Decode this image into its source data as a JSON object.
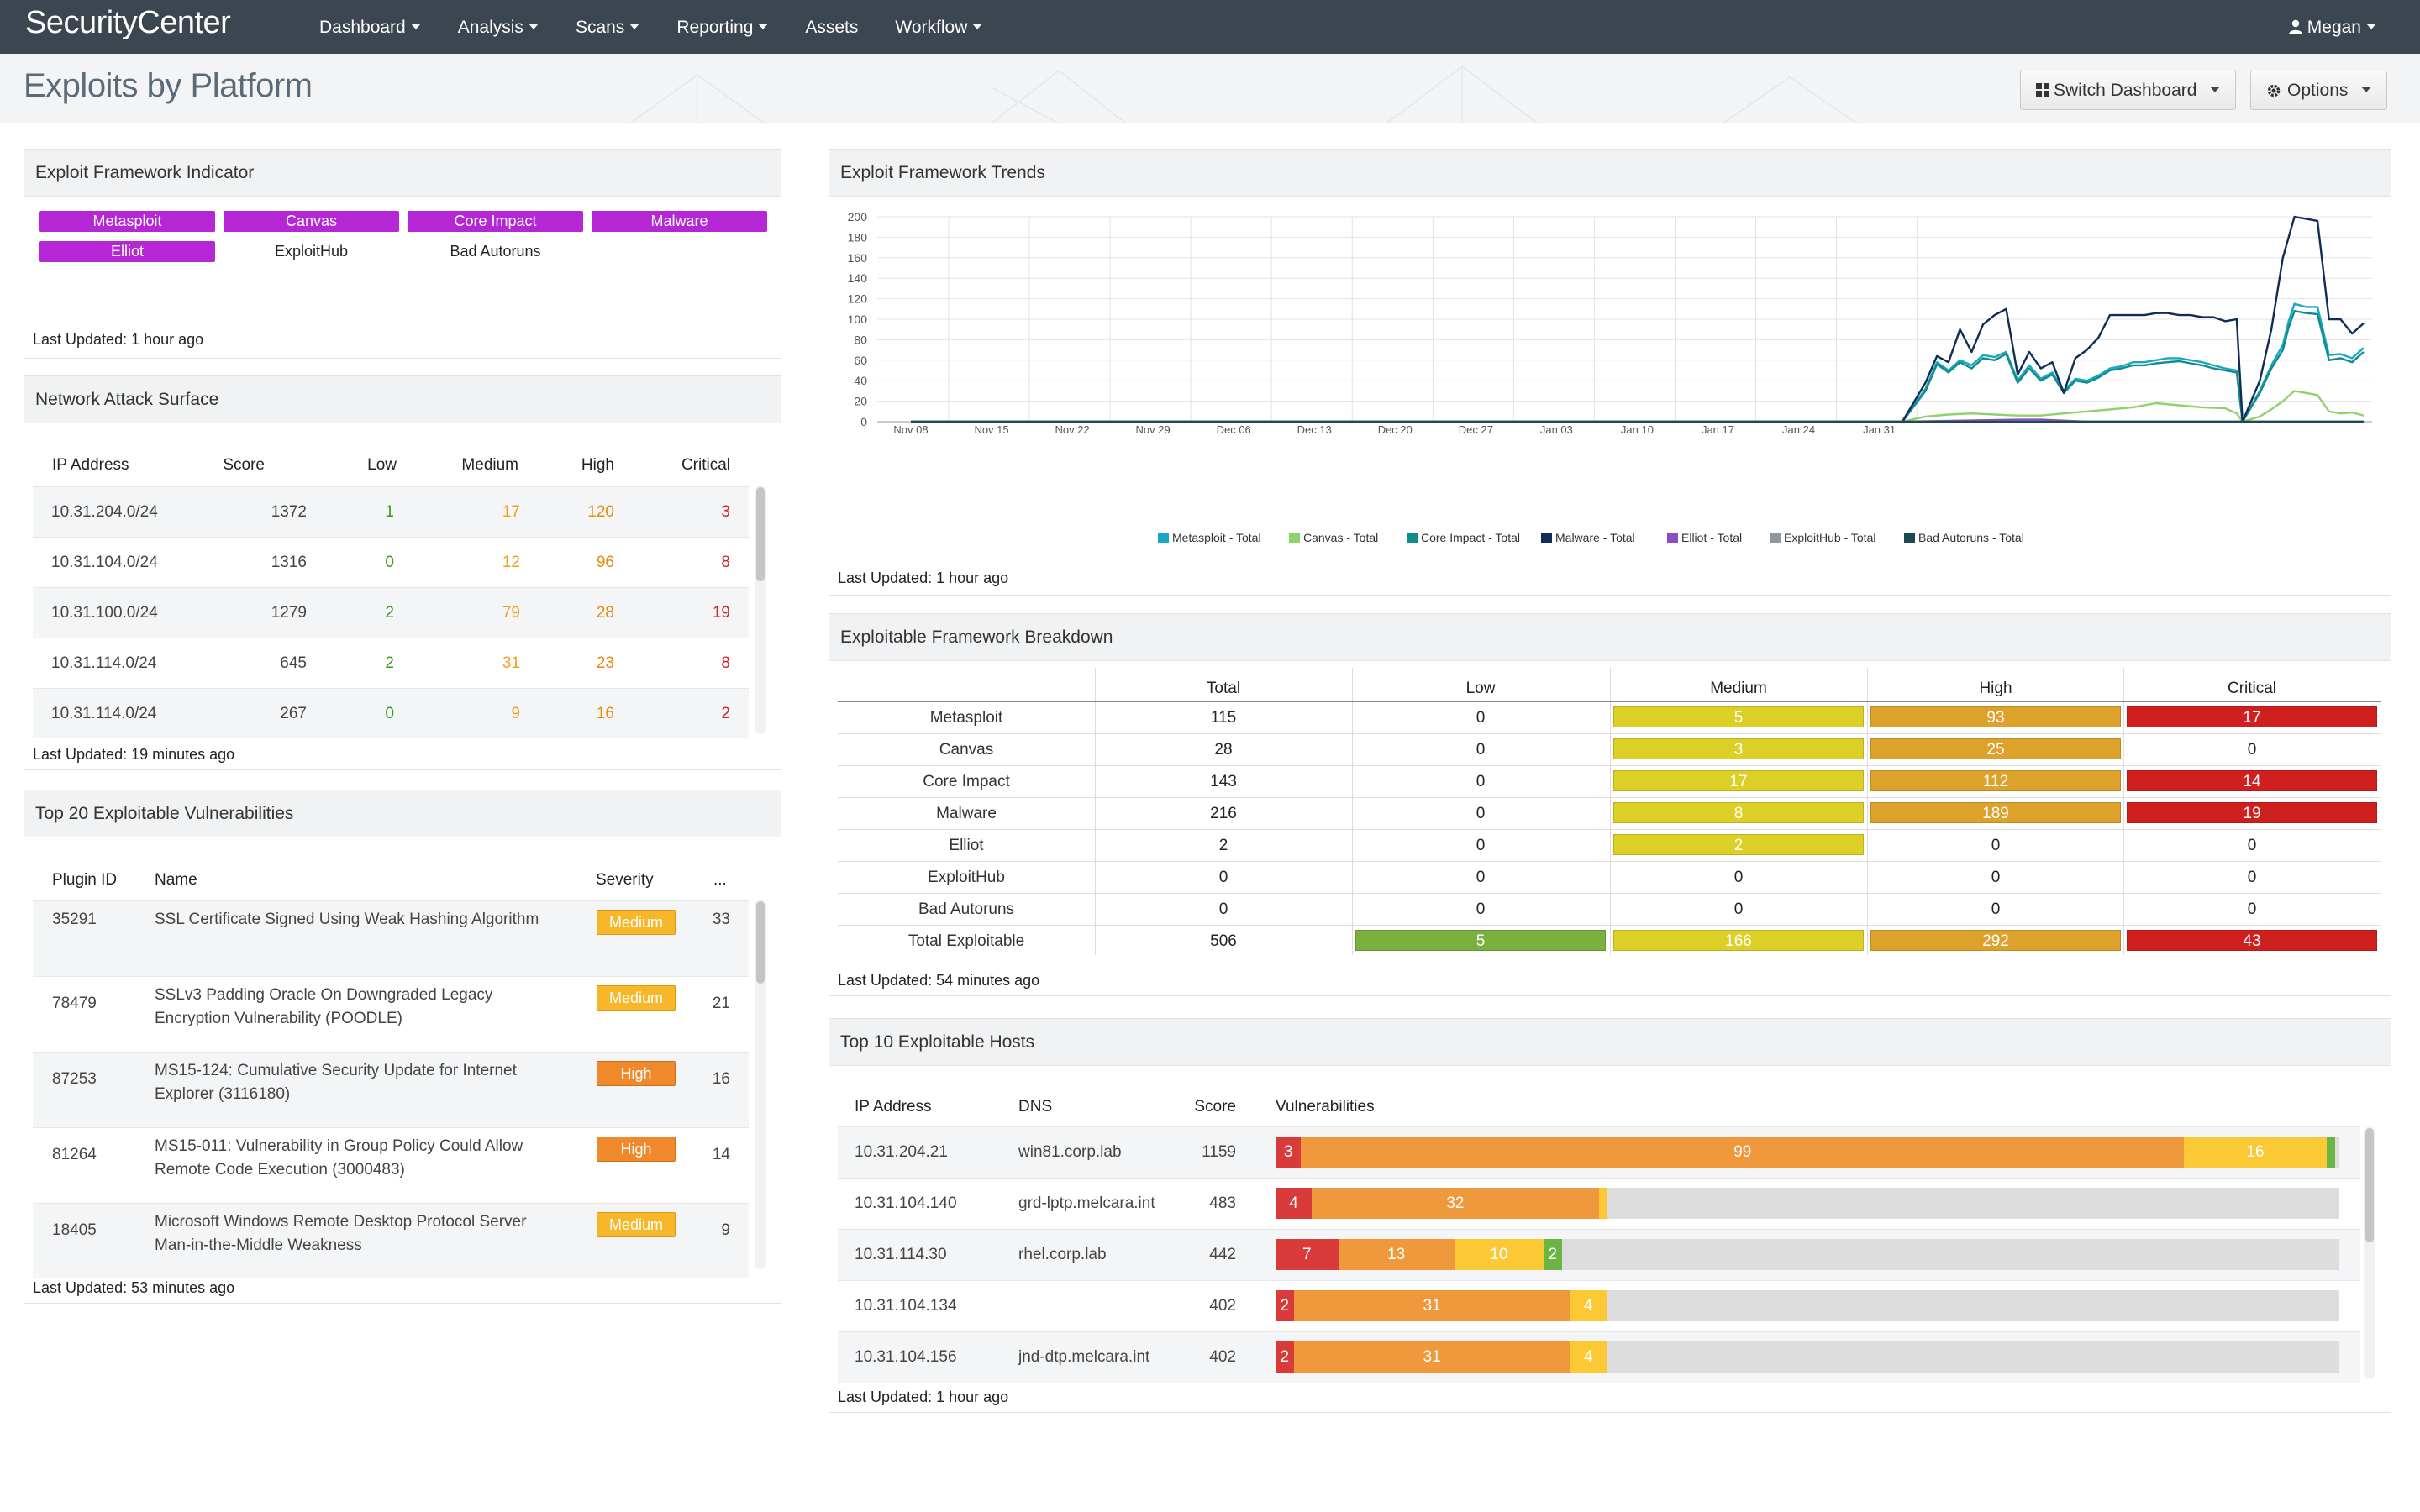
{
  "app": {
    "logo": "SecurityCenter",
    "user": "Megan",
    "nav": [
      "Dashboard",
      "Analysis",
      "Scans",
      "Reporting",
      "Assets",
      "Workflow"
    ],
    "nav_dropdown": [
      true,
      true,
      true,
      true,
      false,
      true
    ]
  },
  "page": {
    "title": "Exploits by Platform",
    "switch_dashboard": "Switch Dashboard",
    "options": "Options"
  },
  "indicator": {
    "title": "Exploit Framework Indicator",
    "updated": "Last Updated: 1 hour ago",
    "tags": [
      {
        "label": "Metasploit",
        "active": true
      },
      {
        "label": "Canvas",
        "active": true
      },
      {
        "label": "Core Impact",
        "active": true
      },
      {
        "label": "Malware",
        "active": true
      },
      {
        "label": "Elliot",
        "active": true
      },
      {
        "label": "ExploitHub",
        "active": false
      },
      {
        "label": "Bad Autoruns",
        "active": false
      }
    ],
    "active_color": "#b526d4"
  },
  "attack_surface": {
    "title": "Network Attack Surface",
    "updated": "Last Updated: 19 minutes ago",
    "headers": [
      "IP Address",
      "Score",
      "Low",
      "Medium",
      "High",
      "Critical"
    ],
    "rows": [
      [
        "10.31.204.0/24",
        "1372",
        "1",
        "17",
        "120",
        "3"
      ],
      [
        "10.31.104.0/24",
        "1316",
        "0",
        "12",
        "96",
        "8"
      ],
      [
        "10.31.100.0/24",
        "1279",
        "2",
        "79",
        "28",
        "19"
      ],
      [
        "10.31.114.0/24",
        "645",
        "2",
        "31",
        "23",
        "8"
      ],
      [
        "10.31.114.0/24",
        "267",
        "0",
        "9",
        "16",
        "2"
      ]
    ]
  },
  "top20": {
    "title": "Top 20 Exploitable Vulnerabilities",
    "updated": "Last Updated: 53 minutes ago",
    "headers": [
      "Plugin ID",
      "Name",
      "Severity",
      "..."
    ],
    "rows": [
      {
        "id": "35291",
        "name": [
          "SSL Certificate Signed Using Weak Hashing Algorithm"
        ],
        "severity": "Medium",
        "count": "33"
      },
      {
        "id": "78479",
        "name": [
          "SSLv3 Padding Oracle On Downgraded Legacy",
          "Encryption Vulnerability (POODLE)"
        ],
        "severity": "Medium",
        "count": "21"
      },
      {
        "id": "87253",
        "name": [
          "MS15-124: Cumulative Security Update for Internet",
          "Explorer (3116180)"
        ],
        "severity": "High",
        "count": "16"
      },
      {
        "id": "81264",
        "name": [
          "MS15-011: Vulnerability in Group Policy Could Allow",
          "Remote Code Execution (3000483)"
        ],
        "severity": "High",
        "count": "14"
      },
      {
        "id": "18405",
        "name": [
          "Microsoft Windows Remote Desktop Protocol Server",
          "Man-in-the-Middle Weakness"
        ],
        "severity": "Medium",
        "count": "9"
      }
    ]
  },
  "trends": {
    "title": "Exploit Framework Trends",
    "updated": "Last Updated: 1 hour ago"
  },
  "chart_data": {
    "type": "line",
    "x": [
      "Nov 08",
      "Nov 15",
      "Nov 22",
      "Nov 29",
      "Dec 06",
      "Dec 13",
      "Dec 20",
      "Dec 27",
      "Jan 03",
      "Jan 10",
      "Jan 17",
      "Jan 24",
      "Jan 31"
    ],
    "ylim": [
      0,
      200
    ],
    "yticks": [
      0,
      20,
      40,
      60,
      80,
      100,
      120,
      140,
      160,
      180,
      200
    ],
    "grid": true,
    "legend": "bottom",
    "series": [
      {
        "name": "Metasploit - Total",
        "color": "#1aa7c5",
        "points": [
          [
            0,
            0
          ],
          [
            86,
            0
          ],
          [
            88,
            32
          ],
          [
            89,
            58
          ],
          [
            90,
            50
          ],
          [
            91,
            60
          ],
          [
            92,
            55
          ],
          [
            93,
            65
          ],
          [
            94,
            63
          ],
          [
            95,
            68
          ],
          [
            96,
            40
          ],
          [
            97,
            55
          ],
          [
            98,
            42
          ],
          [
            99,
            48
          ],
          [
            100,
            30
          ],
          [
            101,
            42
          ],
          [
            102,
            40
          ],
          [
            103,
            45
          ],
          [
            104,
            52
          ],
          [
            105,
            54
          ],
          [
            106,
            58
          ],
          [
            107,
            58
          ],
          [
            108,
            60
          ],
          [
            109,
            62
          ],
          [
            110,
            62
          ],
          [
            111,
            60
          ],
          [
            112,
            58
          ],
          [
            113,
            55
          ],
          [
            114,
            52
          ],
          [
            115,
            50
          ],
          [
            115.5,
            0
          ],
          [
            117,
            30
          ],
          [
            118,
            55
          ],
          [
            119,
            75
          ],
          [
            119.5,
            98
          ],
          [
            120,
            115
          ],
          [
            121,
            112
          ],
          [
            122,
            112
          ],
          [
            123,
            65
          ],
          [
            124,
            66
          ],
          [
            125,
            62
          ],
          [
            126,
            72
          ]
        ]
      },
      {
        "name": "Canvas - Total",
        "color": "#8fd16b",
        "points": [
          [
            0,
            0
          ],
          [
            86,
            0
          ],
          [
            88,
            5
          ],
          [
            90,
            7
          ],
          [
            92,
            8
          ],
          [
            94,
            7
          ],
          [
            96,
            6
          ],
          [
            98,
            6
          ],
          [
            100,
            8
          ],
          [
            102,
            10
          ],
          [
            104,
            12
          ],
          [
            106,
            14
          ],
          [
            108,
            18
          ],
          [
            110,
            16
          ],
          [
            112,
            14
          ],
          [
            114,
            13
          ],
          [
            115,
            8
          ],
          [
            115.5,
            0
          ],
          [
            117,
            5
          ],
          [
            118,
            12
          ],
          [
            119,
            20
          ],
          [
            120,
            30
          ],
          [
            121,
            28
          ],
          [
            122,
            26
          ],
          [
            123,
            10
          ],
          [
            124,
            8
          ],
          [
            125,
            9
          ],
          [
            126,
            6
          ]
        ]
      },
      {
        "name": "Core Impact - Total",
        "color": "#118c8c",
        "points": [
          [
            0,
            0
          ],
          [
            86,
            0
          ],
          [
            88,
            30
          ],
          [
            89,
            56
          ],
          [
            90,
            48
          ],
          [
            91,
            58
          ],
          [
            92,
            52
          ],
          [
            93,
            62
          ],
          [
            94,
            60
          ],
          [
            95,
            66
          ],
          [
            96,
            38
          ],
          [
            97,
            52
          ],
          [
            98,
            40
          ],
          [
            99,
            46
          ],
          [
            100,
            28
          ],
          [
            101,
            40
          ],
          [
            102,
            38
          ],
          [
            103,
            43
          ],
          [
            104,
            50
          ],
          [
            105,
            52
          ],
          [
            106,
            55
          ],
          [
            107,
            55
          ],
          [
            108,
            57
          ],
          [
            109,
            58
          ],
          [
            110,
            59
          ],
          [
            111,
            57
          ],
          [
            112,
            55
          ],
          [
            113,
            52
          ],
          [
            114,
            50
          ],
          [
            115,
            48
          ],
          [
            115.5,
            0
          ],
          [
            117,
            28
          ],
          [
            118,
            52
          ],
          [
            119,
            70
          ],
          [
            119.5,
            92
          ],
          [
            120,
            108
          ],
          [
            121,
            106
          ],
          [
            122,
            105
          ],
          [
            123,
            60
          ],
          [
            124,
            62
          ],
          [
            125,
            58
          ],
          [
            126,
            68
          ]
        ]
      },
      {
        "name": "Malware - Total",
        "color": "#0f2d55",
        "points": [
          [
            0,
            0
          ],
          [
            86,
            0
          ],
          [
            88,
            38
          ],
          [
            89,
            64
          ],
          [
            90,
            58
          ],
          [
            91,
            90
          ],
          [
            92,
            68
          ],
          [
            93,
            95
          ],
          [
            94,
            104
          ],
          [
            95,
            110
          ],
          [
            96,
            46
          ],
          [
            97,
            68
          ],
          [
            98,
            52
          ],
          [
            99,
            58
          ],
          [
            100,
            28
          ],
          [
            101,
            62
          ],
          [
            102,
            70
          ],
          [
            103,
            82
          ],
          [
            104,
            104
          ],
          [
            105,
            104
          ],
          [
            106,
            104
          ],
          [
            107,
            104
          ],
          [
            108,
            106
          ],
          [
            109,
            106
          ],
          [
            110,
            104
          ],
          [
            111,
            104
          ],
          [
            112,
            102
          ],
          [
            113,
            102
          ],
          [
            114,
            98
          ],
          [
            115,
            100
          ],
          [
            115.5,
            0
          ],
          [
            117,
            40
          ],
          [
            118,
            90
          ],
          [
            119,
            160
          ],
          [
            119.5,
            180
          ],
          [
            120,
            200
          ],
          [
            121,
            198
          ],
          [
            122,
            196
          ],
          [
            123,
            100
          ],
          [
            124,
            100
          ],
          [
            125,
            86
          ],
          [
            126,
            96
          ]
        ]
      },
      {
        "name": "Elliot - Total",
        "color": "#8a4fbf",
        "points": [
          [
            0,
            0
          ],
          [
            86,
            0
          ],
          [
            96,
            2
          ],
          [
            98,
            2
          ],
          [
            102,
            0
          ],
          [
            126,
            0
          ]
        ]
      },
      {
        "name": "ExploitHub - Total",
        "color": "#8e96a0",
        "points": [
          [
            0,
            0
          ],
          [
            126,
            0
          ]
        ]
      },
      {
        "name": "Bad Autoruns - Total",
        "color": "#1d4a52",
        "points": [
          [
            0,
            0
          ],
          [
            126,
            0
          ]
        ]
      }
    ]
  },
  "breakdown": {
    "title": "Exploitable Framework Breakdown",
    "updated": "Last Updated: 54 minutes ago",
    "headers": [
      "",
      "Total",
      "Low",
      "Medium",
      "High",
      "Critical"
    ],
    "colors": {
      "Low": "#7ab040",
      "Medium": "#dccf26",
      "High": "#dca22c",
      "Critical": "#d01f1f"
    },
    "rows": [
      {
        "name": "Metasploit",
        "total": "115",
        "low": "0",
        "medium": "5",
        "high": "93",
        "critical": "17"
      },
      {
        "name": "Canvas",
        "total": "28",
        "low": "0",
        "medium": "3",
        "high": "25",
        "critical": "0"
      },
      {
        "name": "Core Impact",
        "total": "143",
        "low": "0",
        "medium": "17",
        "high": "112",
        "critical": "14"
      },
      {
        "name": "Malware",
        "total": "216",
        "low": "0",
        "medium": "8",
        "high": "189",
        "critical": "19"
      },
      {
        "name": "Elliot",
        "total": "2",
        "low": "0",
        "medium": "2",
        "high": "0",
        "critical": "0"
      },
      {
        "name": "ExploitHub",
        "total": "0",
        "low": "0",
        "medium": "0",
        "high": "0",
        "critical": "0"
      },
      {
        "name": "Bad Autoruns",
        "total": "0",
        "low": "0",
        "medium": "0",
        "high": "0",
        "critical": "0"
      },
      {
        "name": "Total Exploitable",
        "total": "506",
        "low": "5",
        "medium": "166",
        "high": "292",
        "critical": "43"
      }
    ]
  },
  "top10": {
    "title": "Top 10 Exploitable Hosts",
    "updated": "Last Updated: 1 hour ago",
    "headers": [
      "IP Address",
      "DNS",
      "Score",
      "Vulnerabilities"
    ],
    "rows": [
      {
        "ip": "10.31.204.21",
        "dns": "win81.corp.lab",
        "score": "1159",
        "segs": [
          [
            "3",
            0.024,
            "#d93a3a"
          ],
          [
            "99",
            0.83,
            "#f0993c"
          ],
          [
            "16",
            0.134,
            "#fbc933"
          ],
          [
            "",
            0.008,
            "#6cb544"
          ]
        ]
      },
      {
        "ip": "10.31.104.140",
        "dns": "grd-lptp.melcara.int",
        "score": "483",
        "segs": [
          [
            "4",
            0.034,
            "#d93a3a"
          ],
          [
            "32",
            0.27,
            "#f0993c"
          ],
          [
            "",
            0.008,
            "#fbc933"
          ]
        ]
      },
      {
        "ip": "10.31.114.30",
        "dns": "rhel.corp.lab",
        "score": "442",
        "segs": [
          [
            "7",
            0.059,
            "#d93a3a"
          ],
          [
            "13",
            0.109,
            "#f0993c"
          ],
          [
            "10",
            0.084,
            "#fbc933"
          ],
          [
            "2",
            0.017,
            "#6cb544"
          ]
        ]
      },
      {
        "ip": "10.31.104.134",
        "dns": "",
        "score": "402",
        "segs": [
          [
            "2",
            0.017,
            "#d93a3a"
          ],
          [
            "31",
            0.26,
            "#f0993c"
          ],
          [
            "4",
            0.034,
            "#fbc933"
          ]
        ]
      },
      {
        "ip": "10.31.104.156",
        "dns": "jnd-dtp.melcara.int",
        "score": "402",
        "segs": [
          [
            "2",
            0.017,
            "#d93a3a"
          ],
          [
            "31",
            0.26,
            "#f0993c"
          ],
          [
            "4",
            0.034,
            "#fbc933"
          ]
        ]
      }
    ]
  }
}
